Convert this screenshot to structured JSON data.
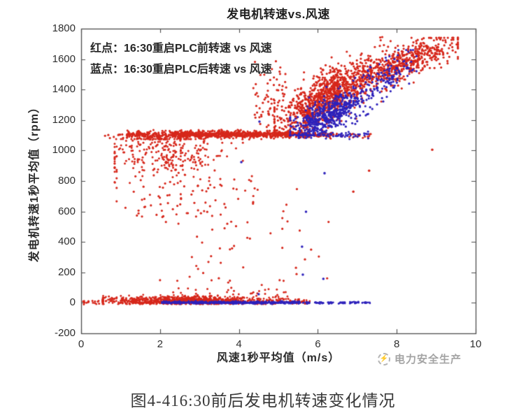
{
  "figure": {
    "caption": "图4-416:30前后发电机转速变化情况",
    "watermark": {
      "text": "电力安全生产",
      "icon": "circle-logo-icon"
    }
  },
  "chart_data": {
    "type": "scatter",
    "title": "发电机转速vs.风速",
    "xlabel": "风速1秒平均值（m/s）",
    "ylabel": "发电机转速1秒平均值（rpm）",
    "xlim": [
      0,
      10
    ],
    "ylim": [
      -200,
      1800
    ],
    "xticks": [
      0,
      2,
      4,
      6,
      8,
      10
    ],
    "yticks": [
      -200,
      0,
      200,
      400,
      600,
      800,
      1000,
      1200,
      1400,
      1600,
      1800
    ],
    "grid": false,
    "legend_position": "inside-top-left",
    "annotations": [
      "红点：16:30重启PLC前转速 vs 风速",
      "蓝点：16:30重启PLC后转速 vs 风速"
    ],
    "colors": {
      "red": "#d6271b",
      "blue": "#2e22bb",
      "axis": "#4d4d4d",
      "text": "#2f2f2f"
    },
    "series": [
      {
        "name": "16:30重启PLC前转速 vs 风速",
        "color": "red",
        "marker": "dot"
      },
      {
        "name": "16:30重启PLC后转速 vs 风速",
        "color": "blue",
        "marker": "dot"
      }
    ],
    "clusters": [
      {
        "name": "red-bottom-left-dots",
        "color": "red",
        "n": 14,
        "r": 1.5,
        "x": {
          "dist": "uniform",
          "min": 0.05,
          "max": 0.55
        },
        "y": {
          "dist": "gauss",
          "base": 5,
          "sd": 7,
          "min": -10,
          "max": 25
        }
      },
      {
        "name": "red-bottom-band",
        "color": "red",
        "n": 950,
        "r": 1.4,
        "x": {
          "dist": "gauss",
          "mean": 2.7,
          "sd": 1.15,
          "min": 0.55,
          "max": 5.3
        },
        "y": {
          "dist": "gauss",
          "base": 14,
          "sd": 14,
          "min": -8,
          "max": 75
        }
      },
      {
        "name": "red-bottom-band-right",
        "color": "red",
        "n": 40,
        "r": 1.4,
        "x": {
          "dist": "uniform",
          "min": 5.3,
          "max": 5.8
        },
        "y": {
          "dist": "gauss",
          "base": 6,
          "sd": 7,
          "min": -6,
          "max": 30
        }
      },
      {
        "name": "red-bottom-bumps",
        "color": "red",
        "n": 30,
        "r": 1.5,
        "x": {
          "dist": "uniform",
          "min": 2.3,
          "max": 5.2
        },
        "y": {
          "dist": "uniform",
          "min": 40,
          "max": 100
        }
      },
      {
        "name": "red-plateau-far-left",
        "color": "red",
        "n": 9,
        "r": 1.6,
        "x": {
          "dist": "uniform",
          "min": 0.6,
          "max": 1.15
        },
        "y": {
          "dist": "gauss",
          "base": 1093,
          "sd": 10,
          "min": 1060,
          "max": 1120
        }
      },
      {
        "name": "red-plateau-left",
        "color": "red",
        "n": 160,
        "r": 1.5,
        "x": {
          "dist": "uniform",
          "min": 1.15,
          "max": 2.3
        },
        "y": {
          "dist": "gauss",
          "base": 1100,
          "sd": 14,
          "min": 1050,
          "max": 1140
        }
      },
      {
        "name": "red-plateau-core",
        "color": "red",
        "n": 750,
        "r": 1.5,
        "x": {
          "dist": "uniform",
          "min": 2.3,
          "max": 5.35
        },
        "y": {
          "dist": "gauss",
          "base": 1106,
          "sd": 11,
          "min": 1065,
          "max": 1150
        }
      },
      {
        "name": "red-plateau-right",
        "color": "red",
        "n": 110,
        "r": 1.5,
        "x": {
          "dist": "uniform",
          "min": 5.35,
          "max": 6.45
        },
        "y": {
          "dist": "gauss",
          "base": 1102,
          "sd": 9,
          "min": 1070,
          "max": 1135
        }
      },
      {
        "name": "red-plateau-tail",
        "color": "red",
        "n": 22,
        "r": 1.5,
        "x": {
          "dist": "uniform",
          "min": 6.45,
          "max": 7.35
        },
        "y": {
          "dist": "gauss",
          "base": 1100,
          "sd": 8,
          "min": 1075,
          "max": 1125
        }
      },
      {
        "name": "red-subplateau-cloud",
        "color": "red",
        "n": 280,
        "r": 1.5,
        "x": {
          "dist": "gauss",
          "mean": 2.1,
          "sd": 0.75,
          "min": 0.85,
          "max": 4.1
        },
        "y": {
          "dist": "gauss",
          "base": 985,
          "sd": 75,
          "min": 770,
          "max": 1075
        }
      },
      {
        "name": "red-subplateau-sparse",
        "color": "red",
        "n": 70,
        "r": 1.6,
        "x": {
          "dist": "gauss",
          "mean": 2.3,
          "sd": 0.9,
          "min": 0.9,
          "max": 4.6
        },
        "y": {
          "dist": "uniform",
          "min": 560,
          "max": 880
        }
      },
      {
        "name": "red-rising-left-fringe",
        "color": "red",
        "n": 70,
        "r": 1.6,
        "x": {
          "dist": "uniform",
          "min": 4.35,
          "max": 5.2
        },
        "y": {
          "dist": "gauss",
          "base": 1300,
          "sd": 140,
          "min": 1130,
          "max": 1640
        }
      },
      {
        "name": "red-rising-mid-cloud",
        "color": "red",
        "n": 950,
        "r": 1.6,
        "x": {
          "dist": "gauss",
          "mean": 6.15,
          "sd": 0.6,
          "min": 4.9,
          "max": 7.8
        },
        "y": {
          "dist": "gauss",
          "base": 1150,
          "slope": 148,
          "x0": 4.9,
          "sd": 82,
          "min": 1115,
          "max": 1745
        }
      },
      {
        "name": "red-rising-top-cloud",
        "color": "red",
        "n": 600,
        "r": 1.6,
        "x": {
          "dist": "gauss",
          "mean": 8.05,
          "sd": 0.8,
          "min": 6.5,
          "max": 9.55
        },
        "y": {
          "dist": "gauss",
          "base": 1425,
          "slope": 92,
          "x0": 6.5,
          "sd": 58,
          "min": 1240,
          "max": 1740
        }
      },
      {
        "name": "red-falling-sparse",
        "color": "red",
        "n": 60,
        "r": 1.6,
        "x": {
          "dist": "gauss",
          "mean": 3.6,
          "sd": 0.75,
          "min": 2.0,
          "max": 5.1
        },
        "y": {
          "dist": "uniform",
          "min": 80,
          "max": 840
        }
      },
      {
        "name": "red-falling-sparse-right",
        "color": "red",
        "n": 14,
        "r": 1.6,
        "x": {
          "dist": "uniform",
          "min": 5.0,
          "max": 6.4
        },
        "y": {
          "dist": "uniform",
          "min": 140,
          "max": 760
        }
      },
      {
        "name": "blue-bottom-line",
        "color": "blue",
        "n": 520,
        "r": 1.4,
        "x": {
          "dist": "uniform",
          "min": 2.05,
          "max": 5.55
        },
        "y": {
          "dist": "gauss",
          "base": 2,
          "sd": 4,
          "min": -8,
          "max": 14
        }
      },
      {
        "name": "blue-bottom-dash-1",
        "color": "blue",
        "n": 14,
        "r": 1.4,
        "x": {
          "dist": "uniform",
          "min": 5.62,
          "max": 5.8
        },
        "y": {
          "dist": "gauss",
          "base": 1,
          "sd": 3,
          "min": -6,
          "max": 10
        }
      },
      {
        "name": "blue-bottom-dash-2",
        "color": "blue",
        "n": 16,
        "r": 1.4,
        "x": {
          "dist": "uniform",
          "min": 5.92,
          "max": 6.14
        },
        "y": {
          "dist": "gauss",
          "base": 1,
          "sd": 3,
          "min": -6,
          "max": 10
        }
      },
      {
        "name": "blue-bottom-dash-3",
        "color": "blue",
        "n": 12,
        "r": 1.4,
        "x": {
          "dist": "uniform",
          "min": 6.24,
          "max": 6.4
        },
        "y": {
          "dist": "gauss",
          "base": 1,
          "sd": 3,
          "min": -6,
          "max": 10
        }
      },
      {
        "name": "blue-bottom-dash-4",
        "color": "blue",
        "n": 12,
        "r": 1.4,
        "x": {
          "dist": "uniform",
          "min": 6.52,
          "max": 6.72
        },
        "y": {
          "dist": "gauss",
          "base": 1,
          "sd": 3,
          "min": -6,
          "max": 10
        }
      },
      {
        "name": "blue-bottom-dash-5",
        "color": "blue",
        "n": 16,
        "r": 1.4,
        "x": {
          "dist": "uniform",
          "min": 6.8,
          "max": 7.04
        },
        "y": {
          "dist": "gauss",
          "base": 1,
          "sd": 3,
          "min": -6,
          "max": 10
        }
      },
      {
        "name": "blue-bottom-dash-6",
        "color": "blue",
        "n": 14,
        "r": 1.4,
        "x": {
          "dist": "uniform",
          "min": 7.1,
          "max": 7.32
        },
        "y": {
          "dist": "gauss",
          "base": 1,
          "sd": 3,
          "min": -6,
          "max": 10
        }
      },
      {
        "name": "blue-plateau-dash",
        "color": "blue",
        "n": 70,
        "r": 1.5,
        "x": {
          "dist": "uniform",
          "min": 5.5,
          "max": 7.3
        },
        "y": {
          "dist": "gauss",
          "base": 1100,
          "sd": 10,
          "min": 1075,
          "max": 1130
        }
      },
      {
        "name": "blue-mid-cloud",
        "color": "blue",
        "n": 520,
        "r": 1.6,
        "x": {
          "dist": "gauss",
          "mean": 6.3,
          "sd": 0.5,
          "min": 5.3,
          "max": 7.5
        },
        "y": {
          "dist": "gauss",
          "base": 1110,
          "slope": 125,
          "x0": 5.3,
          "sd": 55,
          "min": 1100,
          "max": 1480
        }
      },
      {
        "name": "blue-top-streak",
        "color": "blue",
        "n": 130,
        "r": 1.6,
        "x": {
          "dist": "gauss",
          "mean": 7.75,
          "sd": 0.4,
          "min": 6.9,
          "max": 8.5
        },
        "y": {
          "dist": "gauss",
          "base": 1390,
          "slope": 125,
          "x0": 6.9,
          "sd": 62,
          "min": 1240,
          "max": 1660
        }
      }
    ],
    "extra_points": {
      "red": [
        [
          8.9,
          1005
        ],
        [
          7.3,
          868
        ],
        [
          6.9,
          730
        ],
        [
          0.08,
          2
        ],
        [
          0.18,
          5
        ]
      ],
      "blue": [
        [
          4.06,
          924
        ],
        [
          6.17,
          851
        ],
        [
          5.7,
          598
        ],
        [
          5.6,
          369
        ],
        [
          5.62,
          185
        ],
        [
          6.14,
          158
        ],
        [
          4.5,
          57
        ],
        [
          4.52,
          1190
        ]
      ]
    }
  }
}
